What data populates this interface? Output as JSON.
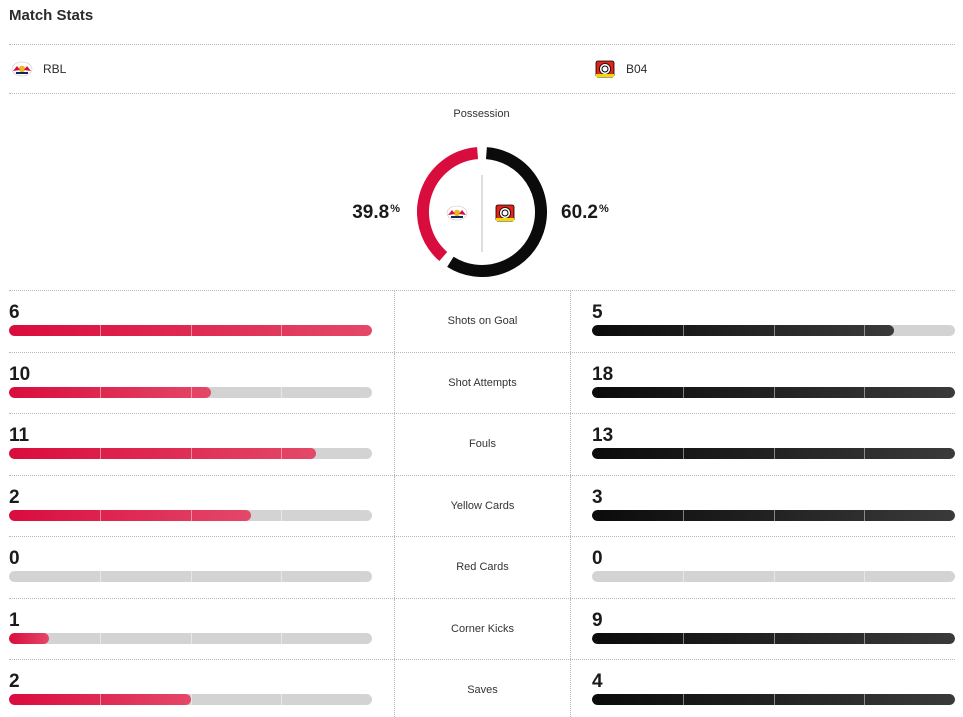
{
  "header": {
    "title": "Match Stats"
  },
  "teams": {
    "home": {
      "abbr": "RBL",
      "logo_icon": "rb-leipzig-logo-icon",
      "color": "#d90c3e"
    },
    "away": {
      "abbr": "B04",
      "logo_icon": "bayer-leverkusen-logo-icon",
      "color": "#0b0b0b"
    }
  },
  "possession": {
    "label": "Possession",
    "home_value": "39.8",
    "away_value": "60.2",
    "unit": "%",
    "home_fraction": 0.398,
    "away_fraction": 0.602
  },
  "stats": [
    {
      "label": "Shots on Goal",
      "home": "6",
      "away": "5",
      "home_fill": 1.0,
      "away_fill": 0.833
    },
    {
      "label": "Shot Attempts",
      "home": "10",
      "away": "18",
      "home_fill": 0.556,
      "away_fill": 1.0
    },
    {
      "label": "Fouls",
      "home": "11",
      "away": "13",
      "home_fill": 0.846,
      "away_fill": 1.0
    },
    {
      "label": "Yellow Cards",
      "home": "2",
      "away": "3",
      "home_fill": 0.667,
      "away_fill": 1.0
    },
    {
      "label": "Red Cards",
      "home": "0",
      "away": "0",
      "home_fill": 0.0,
      "away_fill": 0.0
    },
    {
      "label": "Corner Kicks",
      "home": "1",
      "away": "9",
      "home_fill": 0.111,
      "away_fill": 1.0
    },
    {
      "label": "Saves",
      "home": "2",
      "away": "4",
      "home_fill": 0.5,
      "away_fill": 1.0
    }
  ]
}
